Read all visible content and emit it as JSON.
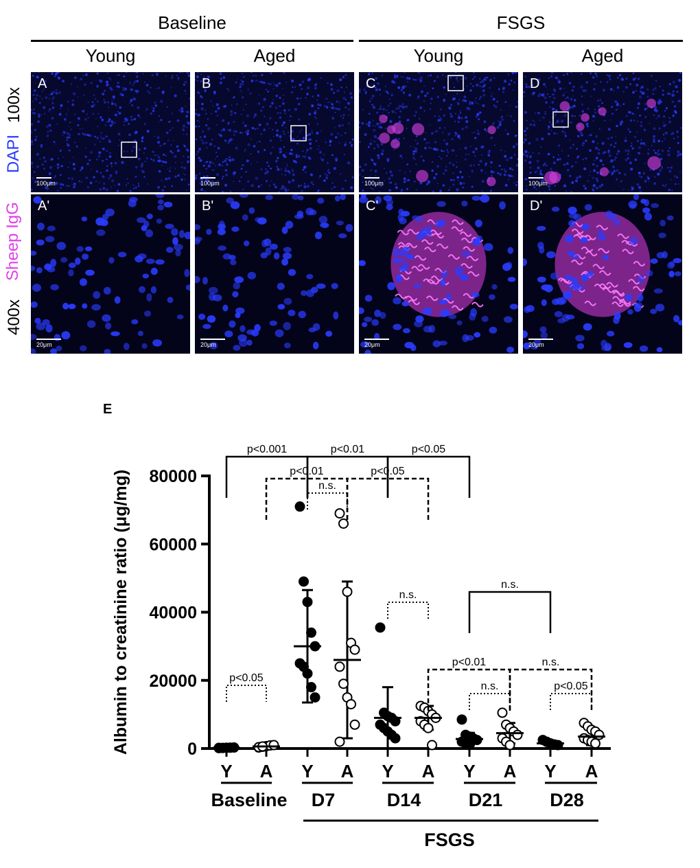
{
  "figure": {
    "groups": [
      {
        "label": "Baseline",
        "columns": [
          "Young",
          "Aged"
        ]
      },
      {
        "label": "FSGS",
        "columns": [
          "Young",
          "Aged"
        ]
      }
    ],
    "row_labels": {
      "top_mag": "100x",
      "bottom_mag": "400x",
      "stain_dapi": "DAPI",
      "stain_igg": "Sheep IgG"
    },
    "panels_top": [
      {
        "letter": "A",
        "scale": "100μm",
        "deposit": false
      },
      {
        "letter": "B",
        "scale": "100μm",
        "deposit": false
      },
      {
        "letter": "C",
        "scale": "100μm",
        "deposit": true
      },
      {
        "letter": "D",
        "scale": "100μm",
        "deposit": true
      }
    ],
    "panels_bottom": [
      {
        "letter": "A'",
        "scale": "20μm",
        "deposit": false
      },
      {
        "letter": "B'",
        "scale": "20μm",
        "deposit": false
      },
      {
        "letter": "C'",
        "scale": "20μm",
        "deposit": true
      },
      {
        "letter": "D'",
        "scale": "20μm",
        "deposit": true
      }
    ],
    "colors": {
      "dapi": "#2a3cff",
      "igg": "#e040e8"
    }
  },
  "chart_data": {
    "type": "scatter",
    "panel_letter": "E",
    "ylabel": "Albumin to creatinine ratio (μg/mg)",
    "ylim": [
      0,
      80000
    ],
    "yticks": [
      "0",
      "20000",
      "40000",
      "60000",
      "80000"
    ],
    "ytick_values": [
      0,
      20000,
      40000,
      60000,
      80000
    ],
    "timepoints": [
      "Baseline",
      "D7",
      "D14",
      "D21",
      "D28"
    ],
    "fsgs_label": "FSGS",
    "groups": [
      {
        "tp": "Baseline",
        "age": "Y",
        "filled": true,
        "mean": 200,
        "sd": 200,
        "values": [
          100,
          150,
          200,
          250,
          300,
          200,
          180,
          220
        ]
      },
      {
        "tp": "Baseline",
        "age": "A",
        "filled": false,
        "mean": 600,
        "sd": 400,
        "values": [
          300,
          500,
          700,
          900,
          1000,
          400,
          600
        ]
      },
      {
        "tp": "D7",
        "age": "Y",
        "filled": true,
        "mean": 30000,
        "sd": 16500,
        "values": [
          71000,
          49000,
          43000,
          34000,
          30000,
          25000,
          24000,
          22000,
          18000,
          15000
        ]
      },
      {
        "tp": "D7",
        "age": "A",
        "filled": false,
        "mean": 26000,
        "sd": 23000,
        "values": [
          69000,
          66000,
          46000,
          31000,
          29000,
          24000,
          19000,
          15000,
          13000,
          7000,
          2000
        ]
      },
      {
        "tp": "D14",
        "age": "Y",
        "filled": true,
        "mean": 9000,
        "sd": 9000,
        "values": [
          35500,
          10500,
          9500,
          9000,
          8000,
          7000,
          6000,
          5000,
          4000,
          3000
        ]
      },
      {
        "tp": "D14",
        "age": "A",
        "filled": false,
        "mean": 9000,
        "sd": 3500,
        "values": [
          12500,
          12000,
          11000,
          10000,
          9000,
          8000,
          7000,
          6000,
          1000
        ]
      },
      {
        "tp": "D21",
        "age": "Y",
        "filled": true,
        "mean": 2800,
        "sd": 1800,
        "values": [
          8500,
          4000,
          3500,
          3000,
          2500,
          2000,
          1500,
          1000
        ]
      },
      {
        "tp": "D21",
        "age": "A",
        "filled": false,
        "mean": 4500,
        "sd": 3000,
        "values": [
          10500,
          7000,
          6000,
          5000,
          4000,
          3000,
          2000,
          1000
        ]
      },
      {
        "tp": "D28",
        "age": "Y",
        "filled": true,
        "mean": 1500,
        "sd": 700,
        "values": [
          2500,
          2000,
          1500,
          1200,
          1000
        ]
      },
      {
        "tp": "D28",
        "age": "A",
        "filled": false,
        "mean": 3500,
        "sd": 2500,
        "values": [
          7500,
          6500,
          5500,
          5000,
          4000,
          3000,
          2500,
          2000,
          1500
        ]
      }
    ],
    "comparisons": [
      {
        "label": "p<0.001",
        "from": 0,
        "to": 2,
        "style": "solid",
        "level": 4
      },
      {
        "label": "p<0.01",
        "from": 2,
        "to": 4,
        "style": "solid",
        "level": 4
      },
      {
        "label": "p<0.05",
        "from": 4,
        "to": 6,
        "style": "solid",
        "level": 4
      },
      {
        "label": "p<0.01",
        "from": 1,
        "to": 3,
        "style": "dashed",
        "level": 3
      },
      {
        "label": "p<0.05",
        "from": 3,
        "to": 5,
        "style": "dashed",
        "level": 3
      },
      {
        "label": "n.s.",
        "from": 2,
        "to": 3,
        "style": "dotted",
        "level": 2
      },
      {
        "label": "p<0.05",
        "from": 0,
        "to": 1,
        "style": "dotted",
        "level": 0
      },
      {
        "label": "n.s.",
        "from": 4,
        "to": 5,
        "style": "dotted",
        "level": 1
      },
      {
        "label": "n.s.",
        "from": 6,
        "to": 8,
        "style": "solid",
        "level": 5
      },
      {
        "label": "p<0.01",
        "from": 5,
        "to": 7,
        "style": "dashed",
        "level": 6
      },
      {
        "label": "n.s.",
        "from": 7,
        "to": 9,
        "style": "dashed",
        "level": 6
      },
      {
        "label": "n.s.",
        "from": 6,
        "to": 7,
        "style": "dotted",
        "level": 7
      },
      {
        "label": "p<0.05",
        "from": 8,
        "to": 9,
        "style": "dotted",
        "level": 7
      }
    ]
  }
}
